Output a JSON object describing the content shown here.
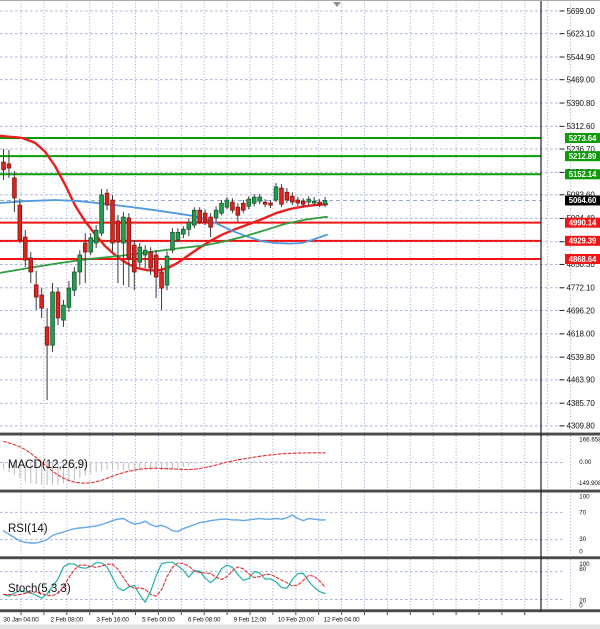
{
  "chart_data": {
    "type": "candlestick",
    "time_axis_labels": [
      "30 Jan 04:00",
      "2 Feb 08:00",
      "3 Feb 16:00",
      "5 Feb 00:00",
      "6 Feb 08:00",
      "9 Feb 12:00",
      "10 Feb 20:00",
      "12 Feb 04:00"
    ],
    "price_axis_labels": [
      "5699.00",
      "5623.10",
      "5544.90",
      "5469.00",
      "5390.80",
      "5312.60",
      "5236.70",
      "5158.50",
      "5083.60",
      "5004.40",
      "4926.20",
      "4850.30",
      "4772.10",
      "4696.20",
      "4618.00",
      "4539.80",
      "4463.90",
      "4385.70",
      "4309.80"
    ],
    "visible_price_range": {
      "top": 5735.8,
      "bottom": 4284.2
    },
    "current_price": "5064.60",
    "resistance_levels": [
      "5273.64",
      "5212.89",
      "5152.14"
    ],
    "support_levels": [
      "4990.14",
      "4929.39",
      "4868.64"
    ],
    "candles_ohlc": [
      [
        5193,
        5237,
        5133,
        5167
      ],
      [
        5187,
        5234,
        5140,
        5173
      ],
      [
        5140,
        5163,
        5026,
        5073
      ],
      [
        5049,
        5070,
        4922,
        4932
      ],
      [
        4942,
        4966,
        4842,
        4865
      ],
      [
        4872,
        4892,
        4788,
        4825
      ],
      [
        4782,
        4829,
        4698,
        4741
      ],
      [
        4748,
        4771,
        4671,
        4704
      ],
      [
        4641,
        4704,
        4396,
        4580
      ],
      [
        4580,
        4788,
        4557,
        4758
      ],
      [
        4758,
        4774,
        4647,
        4671
      ],
      [
        4664,
        4731,
        4641,
        4714
      ],
      [
        4707,
        4795,
        4691,
        4771
      ],
      [
        4764,
        4841,
        4744,
        4825
      ],
      [
        4825,
        4898,
        4781,
        4882
      ],
      [
        4922,
        4955,
        4788,
        4892
      ],
      [
        4892,
        4955,
        4882,
        4939
      ],
      [
        4922,
        4982,
        4905,
        4965
      ],
      [
        4955,
        5103,
        4945,
        5083
      ],
      [
        5089,
        5103,
        5032,
        5049
      ],
      [
        5066,
        5083,
        4892,
        4922
      ],
      [
        4996,
        5016,
        4788,
        4925
      ],
      [
        4922,
        5026,
        4781,
        5009
      ],
      [
        5006,
        5022,
        4774,
        4872
      ],
      [
        4915,
        4932,
        4764,
        4825
      ],
      [
        4858,
        4922,
        4841,
        4908
      ],
      [
        4882,
        4915,
        4838,
        4898
      ],
      [
        4892,
        4908,
        4815,
        4838
      ],
      [
        4882,
        4898,
        4738,
        4808
      ],
      [
        4825,
        4845,
        4698,
        4771
      ],
      [
        4781,
        4895,
        4764,
        4878
      ],
      [
        4898,
        4972,
        4888,
        4958
      ],
      [
        4932,
        4972,
        4925,
        4958
      ],
      [
        4952,
        4978,
        4938,
        4968
      ],
      [
        4968,
        5005,
        4945,
        4992
      ],
      [
        4982,
        5042,
        4972,
        5032
      ],
      [
        5032,
        5042,
        4985,
        4992
      ],
      [
        5022,
        5035,
        4982,
        4992
      ],
      [
        5009,
        5022,
        4942,
        4975
      ],
      [
        5006,
        5045,
        4992,
        5032
      ],
      [
        5022,
        5066,
        5015,
        5055
      ],
      [
        5042,
        5076,
        5035,
        5066
      ],
      [
        5059,
        5072,
        5022,
        5032
      ],
      [
        5042,
        5055,
        4992,
        5015
      ],
      [
        5055,
        5066,
        5022,
        5032
      ],
      [
        5045,
        5079,
        5035,
        5069
      ],
      [
        5055,
        5086,
        5045,
        5076
      ],
      [
        5062,
        5086,
        5052,
        5076
      ],
      [
        5059,
        5069,
        5042,
        5052
      ],
      [
        5056,
        5066,
        5039,
        5049
      ],
      [
        5066,
        5123,
        5059,
        5110
      ],
      [
        5106,
        5120,
        5042,
        5052
      ],
      [
        5092,
        5106,
        5056,
        5066
      ],
      [
        5079,
        5092,
        5049,
        5059
      ],
      [
        5066,
        5076,
        5046,
        5056
      ],
      [
        5062,
        5072,
        5042,
        5052
      ],
      [
        5059,
        5079,
        5049,
        5069
      ],
      [
        5056,
        5076,
        5046,
        5062
      ],
      [
        5059,
        5069,
        5042,
        5052
      ],
      [
        5052,
        5076,
        5042,
        5064.6
      ]
    ],
    "moving_averages": [
      {
        "name": "ma-fast-red",
        "points": [
          [
            0,
            5281
          ],
          [
            22,
            5274
          ],
          [
            35,
            5258
          ],
          [
            45,
            5228
          ],
          [
            55,
            5180
          ],
          [
            65,
            5118
          ],
          [
            75,
            5048
          ],
          [
            85,
            4995
          ],
          [
            95,
            4952
          ],
          [
            105,
            4912
          ],
          [
            115,
            4882
          ],
          [
            125,
            4858
          ],
          [
            135,
            4840
          ],
          [
            147,
            4831
          ],
          [
            158,
            4830
          ],
          [
            168,
            4838
          ],
          [
            178,
            4856
          ],
          [
            188,
            4880
          ],
          [
            198,
            4903
          ],
          [
            210,
            4928
          ],
          [
            222,
            4950
          ],
          [
            235,
            4968
          ],
          [
            248,
            4984
          ],
          [
            262,
            5002
          ],
          [
            276,
            5022
          ],
          [
            290,
            5036
          ],
          [
            303,
            5044
          ],
          [
            315,
            5049
          ],
          [
            327,
            5052
          ]
        ]
      },
      {
        "name": "ma-mid-blue",
        "points": [
          [
            0,
            5056
          ],
          [
            25,
            5062
          ],
          [
            55,
            5066
          ],
          [
            80,
            5062
          ],
          [
            105,
            5053
          ],
          [
            130,
            5043
          ],
          [
            155,
            5032
          ],
          [
            175,
            5022
          ],
          [
            195,
            5012
          ],
          [
            215,
            4990
          ],
          [
            232,
            4963
          ],
          [
            248,
            4943
          ],
          [
            262,
            4928
          ],
          [
            275,
            4922
          ],
          [
            290,
            4920
          ],
          [
            302,
            4922
          ],
          [
            312,
            4932
          ],
          [
            320,
            4942
          ],
          [
            327,
            4950
          ]
        ]
      },
      {
        "name": "ma-slow-green",
        "points": [
          [
            0,
            4822
          ],
          [
            30,
            4839
          ],
          [
            60,
            4855
          ],
          [
            90,
            4869
          ],
          [
            120,
            4879
          ],
          [
            150,
            4892
          ],
          [
            180,
            4905
          ],
          [
            205,
            4914
          ],
          [
            225,
            4928
          ],
          [
            245,
            4945
          ],
          [
            265,
            4965
          ],
          [
            285,
            4986
          ],
          [
            305,
            5000
          ],
          [
            318,
            5006
          ],
          [
            327,
            5010
          ]
        ]
      }
    ],
    "indicators": [
      {
        "name": "macd",
        "label": "MACD(12,26,9)",
        "axis_labels": [
          "166.658",
          "0.00",
          "-149.908"
        ],
        "histogram": [
          -50,
          -68,
          -88,
          -112,
          -132,
          -148,
          -155,
          -158,
          -160,
          -162,
          -158,
          -150,
          -140,
          -128,
          -112,
          -95,
          -80,
          -68,
          -58,
          -52,
          -50,
          -52,
          -55,
          -52,
          -48,
          -50,
          -52,
          -50,
          -52,
          -55,
          -56,
          -50,
          -42,
          -32,
          -22,
          -12,
          -4,
          2,
          6,
          4,
          6,
          10,
          12,
          8,
          6,
          8,
          12,
          14,
          10,
          8,
          12,
          10,
          5,
          3,
          2,
          3,
          5,
          6,
          4,
          3
        ],
        "signal": [
          150,
          140,
          128,
          112,
          92,
          65,
          35,
          5,
          -30,
          -62,
          -90,
          -112,
          -128,
          -140,
          -146,
          -148,
          -145,
          -138,
          -127,
          -113,
          -98,
          -84,
          -72,
          -62,
          -54,
          -48,
          -44,
          -42,
          -41,
          -42,
          -44,
          -46,
          -48,
          -50,
          -50,
          -48,
          -43,
          -36,
          -28,
          -18,
          -8,
          2,
          11,
          19,
          26,
          32,
          38,
          44,
          49,
          54,
          58,
          62,
          64,
          66,
          67,
          68,
          69,
          69,
          69,
          69
        ]
      },
      {
        "name": "rsi",
        "label": "RSI(14)",
        "axis_labels": [
          "100",
          "70",
          "30",
          "0"
        ],
        "levels": [
          70,
          30
        ],
        "values": [
          43,
          38,
          33,
          28,
          26,
          25,
          25,
          27,
          30,
          36,
          39,
          41,
          44,
          46,
          47,
          48,
          49,
          50,
          52,
          55,
          58,
          60,
          61,
          56,
          53,
          54,
          57,
          52,
          49,
          51,
          48,
          43,
          42,
          46,
          49,
          52,
          55,
          56,
          58,
          59,
          60,
          60,
          59,
          59,
          58,
          59,
          60,
          61,
          60,
          60,
          61,
          60,
          62,
          66,
          61,
          58,
          61,
          60,
          59,
          59
        ]
      },
      {
        "name": "stoch",
        "label": "Stoch(5,3,3)",
        "axis_labels": [
          "100",
          "80",
          "20",
          "0"
        ],
        "levels": [
          80,
          20
        ],
        "k": [
          31,
          27,
          34,
          39,
          36,
          34,
          29,
          23,
          32,
          48,
          64,
          90,
          97,
          96,
          89,
          87,
          91,
          99,
          99,
          90,
          67,
          45,
          39,
          47,
          50,
          30,
          14,
          38,
          71,
          97,
          100,
          100,
          92,
          83,
          68,
          82,
          81,
          66,
          56,
          66,
          86,
          94,
          89,
          74,
          61,
          65,
          80,
          77,
          64,
          64,
          58,
          46,
          44,
          63,
          76,
          76,
          59,
          46,
          37,
          33
        ],
        "d": [
          31,
          31,
          29,
          31,
          33,
          36,
          36,
          33,
          29,
          28,
          34,
          48,
          67,
          84,
          94,
          94,
          91,
          89,
          92,
          96,
          96,
          85,
          67,
          50,
          44,
          45,
          42,
          31,
          27,
          41,
          69,
          89,
          99,
          97,
          92,
          81,
          78,
          77,
          76,
          68,
          63,
          69,
          82,
          90,
          86,
          75,
          67,
          69,
          74,
          74,
          68,
          62,
          56,
          49,
          51,
          61,
          72,
          70,
          60,
          47
        ]
      }
    ]
  },
  "colors": {
    "background": "#ffffff",
    "grid": "#a8b6d6",
    "bull": "#259b50",
    "bull_stroke": "#114e28",
    "bear": "#d8251f",
    "bear_stroke": "#7c0f0c",
    "wick": "#3a3a3a",
    "resistance": "#0a9b06",
    "support": "#f01414",
    "ma_fast": "#ea1f1f",
    "ma_mid": "#4f9ae0",
    "ma_slow": "#2f9e3f",
    "macd_hist": "#bdbdbd",
    "macd_signal": "#e23030",
    "rsi_line": "#64a8e8",
    "stoch_k": "#20b2aa",
    "stoch_d": "#e23030",
    "separator": "#4a4a4a",
    "axis_text": "#111111",
    "box_text": "#ffffff",
    "current_box": "#000000",
    "footer_strip": "#e2e2e2"
  }
}
